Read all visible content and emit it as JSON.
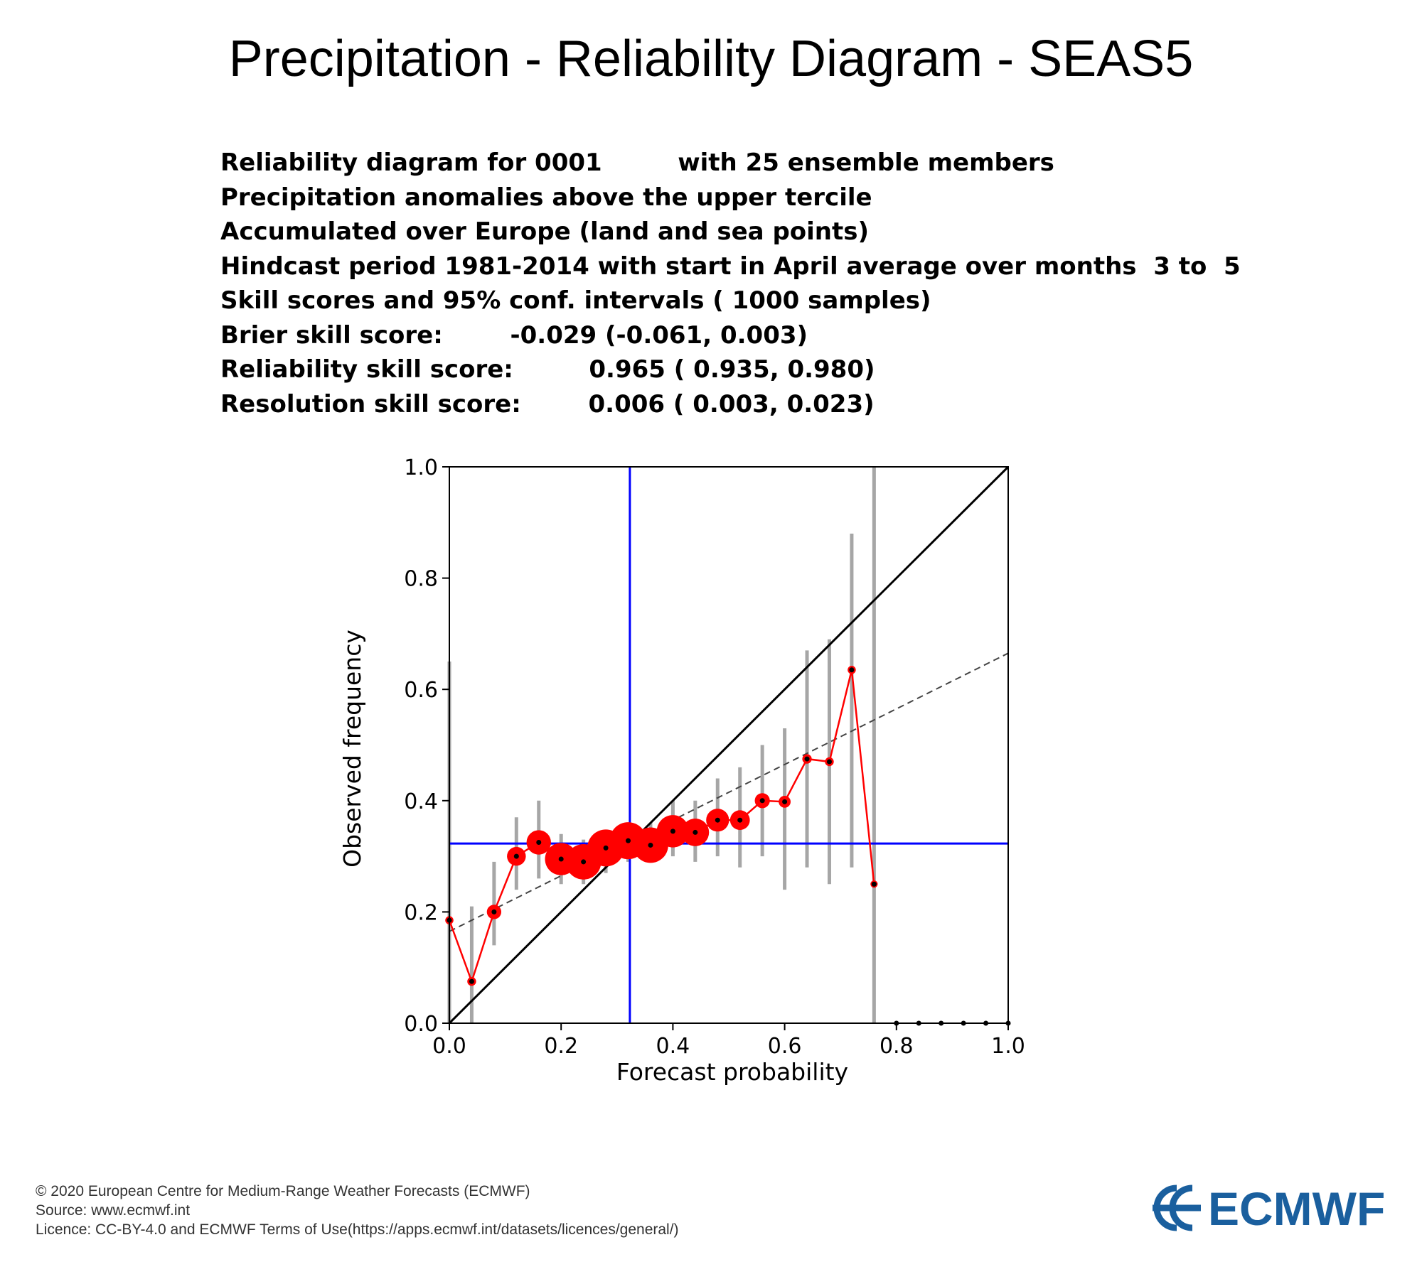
{
  "header": {
    "title": "Precipitation - Reliability Diagram - SEAS5"
  },
  "info_lines": [
    "Reliability diagram for 0001         with 25 ensemble members",
    "Precipitation anomalies above the upper tercile",
    "Accumulated over Europe (land and sea points)",
    "Hindcast period 1981-2014 with start in April average over months  3 to  5",
    "Skill scores and 95% conf. intervals ( 1000 samples)",
    "Brier skill score:        -0.029 (-0.061, 0.003)",
    "Reliability skill score:         0.965 ( 0.935, 0.980)",
    "Resolution skill score:        0.006 ( 0.003, 0.023)"
  ],
  "chart_data": {
    "type": "scatter",
    "xlabel": "Forecast probability",
    "ylabel": "Observed frequency",
    "xlim": [
      0,
      1
    ],
    "ylim": [
      0,
      1
    ],
    "xticks": [
      "0.0",
      "0.2",
      "0.4",
      "0.6",
      "0.8",
      "1.0"
    ],
    "yticks": [
      "0.0",
      "0.2",
      "0.4",
      "0.6",
      "0.8",
      "1.0"
    ],
    "climatology": 0.323,
    "fit_line": {
      "x": [
        0,
        1
      ],
      "y": [
        0.165,
        0.665
      ]
    },
    "series": [
      {
        "x": [
          0.0,
          0.04,
          0.08,
          0.12,
          0.16,
          0.2,
          0.24,
          0.28,
          0.32,
          0.36,
          0.4,
          0.44,
          0.48,
          0.52,
          0.56,
          0.6,
          0.64,
          0.68,
          0.72,
          0.76,
          0.8,
          0.84,
          0.88,
          0.92,
          0.96,
          1.0
        ],
        "y": [
          0.185,
          0.075,
          0.2,
          0.3,
          0.325,
          0.295,
          0.29,
          0.315,
          0.328,
          0.32,
          0.345,
          0.343,
          0.365,
          0.365,
          0.4,
          0.398,
          0.475,
          0.47,
          0.635,
          0.25,
          0.0,
          0.0,
          0.0,
          0.0,
          0.0,
          0.0
        ],
        "ci_low": [
          null,
          0.0,
          0.14,
          0.24,
          0.26,
          0.25,
          0.25,
          0.27,
          0.29,
          0.29,
          0.3,
          0.29,
          0.3,
          0.28,
          0.3,
          0.24,
          0.28,
          0.25,
          0.28,
          0.0,
          null,
          null,
          null,
          null,
          null,
          null
        ],
        "ci_high": [
          0.65,
          0.21,
          0.29,
          0.37,
          0.4,
          0.34,
          0.33,
          0.34,
          0.36,
          0.36,
          0.4,
          0.4,
          0.44,
          0.46,
          0.5,
          0.53,
          0.67,
          0.69,
          0.88,
          1.0,
          null,
          null,
          null,
          null,
          null,
          null
        ],
        "sample_size": [
          0.08,
          0.1,
          0.28,
          0.42,
          0.6,
          0.85,
          0.95,
          1.0,
          1.0,
          0.95,
          0.85,
          0.7,
          0.55,
          0.45,
          0.3,
          0.2,
          0.12,
          0.1,
          0.08,
          0.05,
          0.02,
          0.02,
          0.02,
          0.02,
          0.02,
          0.02
        ]
      }
    ]
  },
  "colors": {
    "markers": "#ff0000",
    "climatology": "#0000ff",
    "diagonal": "#000000",
    "ci_bars": "#a6a6a6",
    "fit": "#444444",
    "logo": "#1a5f9e"
  },
  "footer": {
    "copyright": "© 2020 European Centre for Medium-Range Weather Forecasts (ECMWF)",
    "source": "Source: www.ecmwf.int",
    "licence": "Licence: CC-BY-4.0 and ECMWF Terms of Use(https://apps.ecmwf.int/datasets/licences/general/)"
  },
  "logo": {
    "text": "ECMWF"
  }
}
